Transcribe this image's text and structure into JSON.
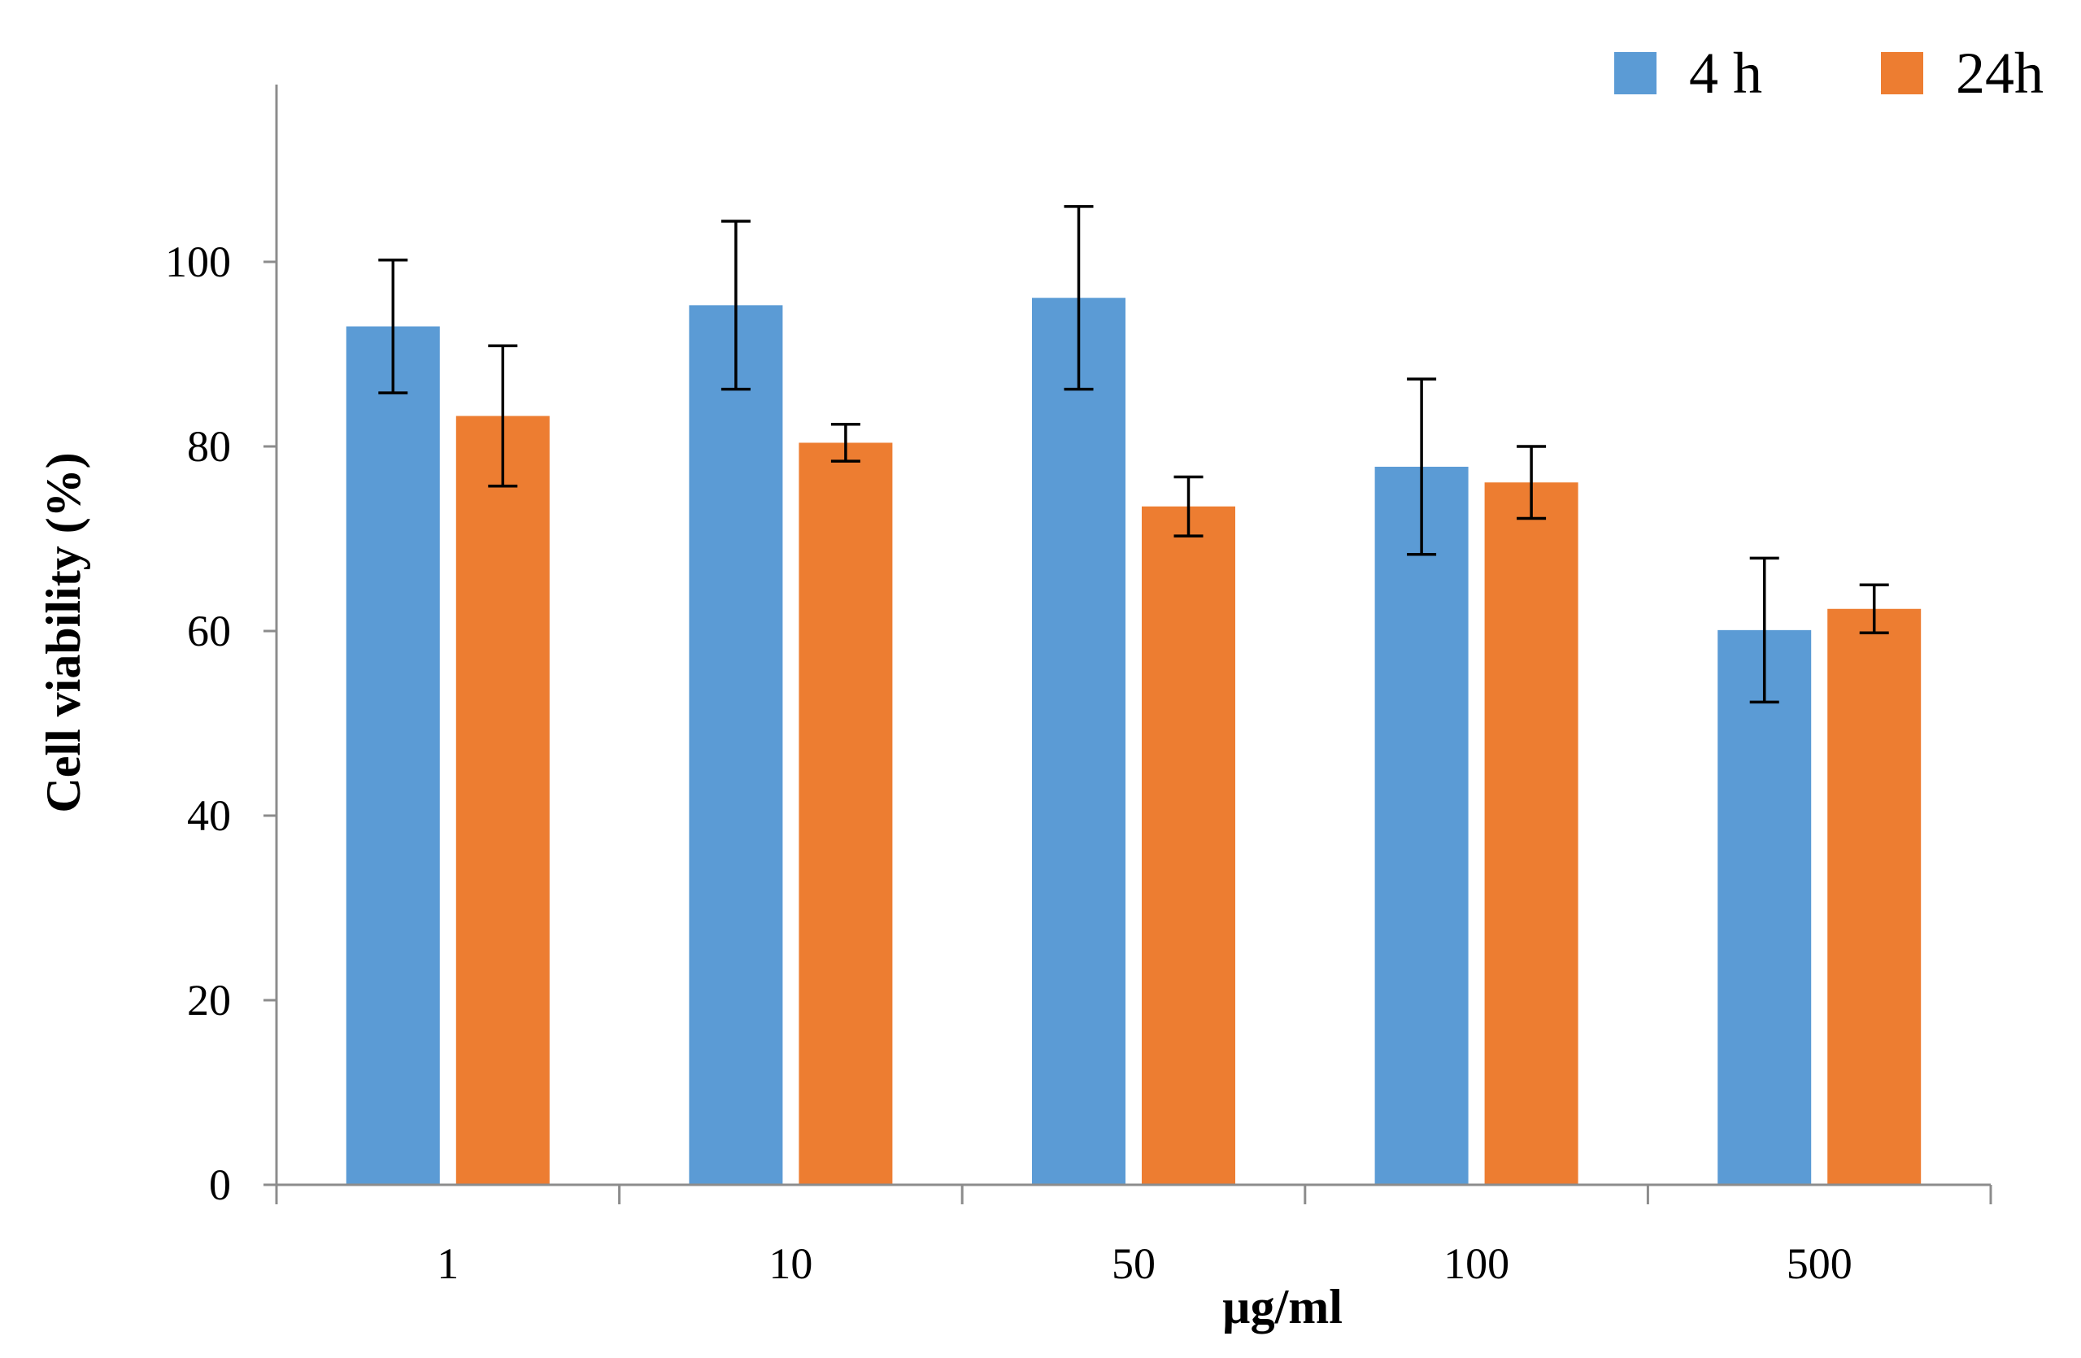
{
  "chart_data": {
    "type": "bar",
    "title": "",
    "xlabel": "µg/ml",
    "ylabel": "Cell viability (%)",
    "categories": [
      "1",
      "10",
      "50",
      "100",
      "500"
    ],
    "ylim": [
      0,
      120
    ],
    "yticks": [
      0,
      20,
      40,
      60,
      80,
      100
    ],
    "ytick_labels": [
      "0",
      "20",
      "40",
      "60",
      "80",
      "100"
    ],
    "grid": false,
    "legend_position": "top-right",
    "series": [
      {
        "name": "4 h",
        "color": "#5B9BD5",
        "values": [
          93.0,
          95.3,
          96.1,
          77.8,
          60.1
        ],
        "errors": [
          7.2,
          9.1,
          9.9,
          9.5,
          7.8
        ]
      },
      {
        "name": "24h",
        "color": "#ED7D31",
        "values": [
          83.3,
          80.4,
          73.5,
          76.1,
          62.4
        ],
        "errors": [
          7.6,
          2.0,
          3.2,
          3.9,
          2.6
        ]
      }
    ]
  }
}
